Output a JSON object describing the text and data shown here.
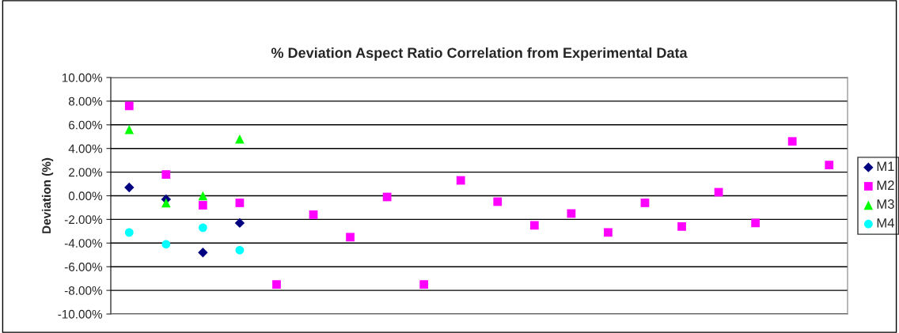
{
  "chart_data": {
    "type": "scatter",
    "title": "% Deviation Aspect Ratio Correlation from Experimental Data",
    "ylabel": "Deviation (%)",
    "categories": [
      null,
      null,
      null,
      null,
      null,
      null,
      null,
      null,
      null,
      null,
      null,
      null,
      null,
      null,
      null,
      null,
      null,
      null,
      null,
      null
    ],
    "series": [
      {
        "name": "M1",
        "color": "#000080",
        "marker": "diamond",
        "values": [
          0.7,
          -0.3,
          -4.8,
          -2.3,
          null,
          null,
          null,
          null,
          null,
          null,
          null,
          null,
          null,
          null,
          null,
          null,
          null,
          null,
          null,
          null
        ]
      },
      {
        "name": "M2",
        "color": "#ff00ff",
        "marker": "square",
        "values": [
          7.6,
          1.8,
          -0.8,
          -0.6,
          -7.5,
          -1.6,
          -3.5,
          -0.1,
          -7.5,
          1.3,
          -0.5,
          -2.5,
          -1.5,
          -3.1,
          -0.6,
          -2.6,
          0.3,
          -2.3,
          4.6,
          2.6
        ]
      },
      {
        "name": "M3",
        "color": "#00ff00",
        "marker": "triangle",
        "values": [
          5.6,
          -0.6,
          0.0,
          4.8,
          null,
          null,
          null,
          null,
          null,
          null,
          null,
          null,
          null,
          null,
          null,
          null,
          null,
          null,
          null,
          null
        ]
      },
      {
        "name": "M4",
        "color": "#00ffff",
        "marker": "circle",
        "values": [
          -3.1,
          -4.1,
          -2.7,
          -4.6,
          null,
          null,
          null,
          null,
          null,
          null,
          null,
          null,
          null,
          null,
          null,
          null,
          null,
          null,
          null,
          null
        ]
      }
    ],
    "ylim": [
      -10,
      10
    ],
    "yticks": [
      {
        "value": -10,
        "label": "-10.00%"
      },
      {
        "value": -8,
        "label": "-8.00%"
      },
      {
        "value": -6,
        "label": "-6.00%"
      },
      {
        "value": -4,
        "label": "-4.00%"
      },
      {
        "value": -2,
        "label": "-2.00%"
      },
      {
        "value": 0,
        "label": "0.00%"
      },
      {
        "value": 2,
        "label": "2.00%"
      },
      {
        "value": 4,
        "label": "4.00%"
      },
      {
        "value": 6,
        "label": "6.00%"
      },
      {
        "value": 8,
        "label": "8.00%"
      },
      {
        "value": 10,
        "label": "10.00%"
      }
    ],
    "grid": "y",
    "legend": "right",
    "tick_labels": "y"
  }
}
